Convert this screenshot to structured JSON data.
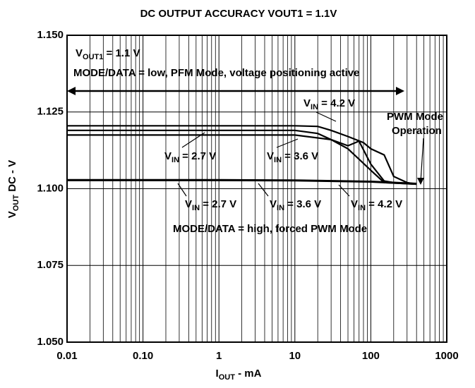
{
  "chart_data": {
    "type": "line",
    "title": "DC OUTPUT ACCURACY VOUT1 = 1.1V",
    "xlabel": {
      "main": "I",
      "sub": "OUT",
      "rest": " - mA"
    },
    "ylabel": {
      "main": "V",
      "sub": "OUT",
      "rest": " DC - V"
    },
    "xscale": "log",
    "grid": true,
    "xlim": [
      0.01,
      1000
    ],
    "xticks": [
      0.01,
      {
        "value": 0.1,
        "label": "0.10"
      },
      1,
      10,
      100,
      1000
    ],
    "ylim": [
      1.05,
      1.15
    ],
    "yticks": [
      {
        "value": 1.05,
        "label": "1.050"
      },
      1.075,
      {
        "value": 1.1,
        "label": "1.100"
      },
      1.125,
      {
        "value": 1.15,
        "label": "1.150"
      }
    ],
    "annotations": {
      "vout": {
        "main": "V",
        "sub": "OUT1",
        "rest": " = 1.1 V"
      },
      "low": "MODE/DATA = low, PFM Mode, voltage positioning active",
      "high": "MODE/DATA = high, forced PWM Mode",
      "pwm1": "PWM Mode",
      "pwm2": "Operation"
    },
    "series": [
      {
        "color": "#000000",
        "label": {
          "main": "V",
          "sub": "IN",
          "rest": " = 4.2 V"
        },
        "x": [
          0.01,
          1,
          10,
          20,
          30,
          50,
          80,
          100,
          150,
          200,
          300,
          400
        ],
        "values": [
          1.1205,
          1.1205,
          1.1205,
          1.1203,
          1.119,
          1.117,
          1.115,
          1.113,
          1.111,
          1.104,
          1.102,
          1.1015
        ]
      },
      {
        "color": "#000000",
        "label": {
          "main": "V",
          "sub": "IN",
          "rest": " = 2.7 V"
        },
        "x": [
          0.01,
          1,
          10,
          30,
          50,
          100,
          150,
          400
        ],
        "values": [
          1.1175,
          1.1175,
          1.1175,
          1.116,
          1.113,
          1.106,
          1.102,
          1.1015
        ]
      },
      {
        "color": "#000000",
        "label": {
          "main": "V",
          "sub": "IN",
          "rest": " = 3.6 V"
        },
        "x": [
          0.01,
          1,
          10,
          20,
          30,
          50,
          70,
          100,
          150,
          200,
          400
        ],
        "values": [
          1.119,
          1.119,
          1.119,
          1.118,
          1.116,
          1.114,
          1.1155,
          1.108,
          1.1025,
          1.102,
          1.1015
        ]
      },
      {
        "color": "#000000",
        "label": {
          "main": "V",
          "sub": "IN",
          "rest": " = 2.7 V"
        },
        "x": [
          0.01,
          1,
          10,
          100,
          400
        ],
        "values": [
          1.1027,
          1.1027,
          1.1026,
          1.1022,
          1.1015
        ]
      },
      {
        "color": "#000000",
        "label": {
          "main": "V",
          "sub": "IN",
          "rest": " = 3.6 V"
        },
        "x": [
          0.01,
          1,
          10,
          100,
          400
        ],
        "values": [
          1.1028,
          1.1028,
          1.1027,
          1.1023,
          1.1016
        ]
      },
      {
        "color": "#000000",
        "label": {
          "main": "V",
          "sub": "IN",
          "rest": " = 4.2 V"
        },
        "x": [
          0.01,
          1,
          10,
          100,
          400
        ],
        "values": [
          1.1029,
          1.1029,
          1.1028,
          1.1024,
          1.1017
        ]
      }
    ]
  }
}
